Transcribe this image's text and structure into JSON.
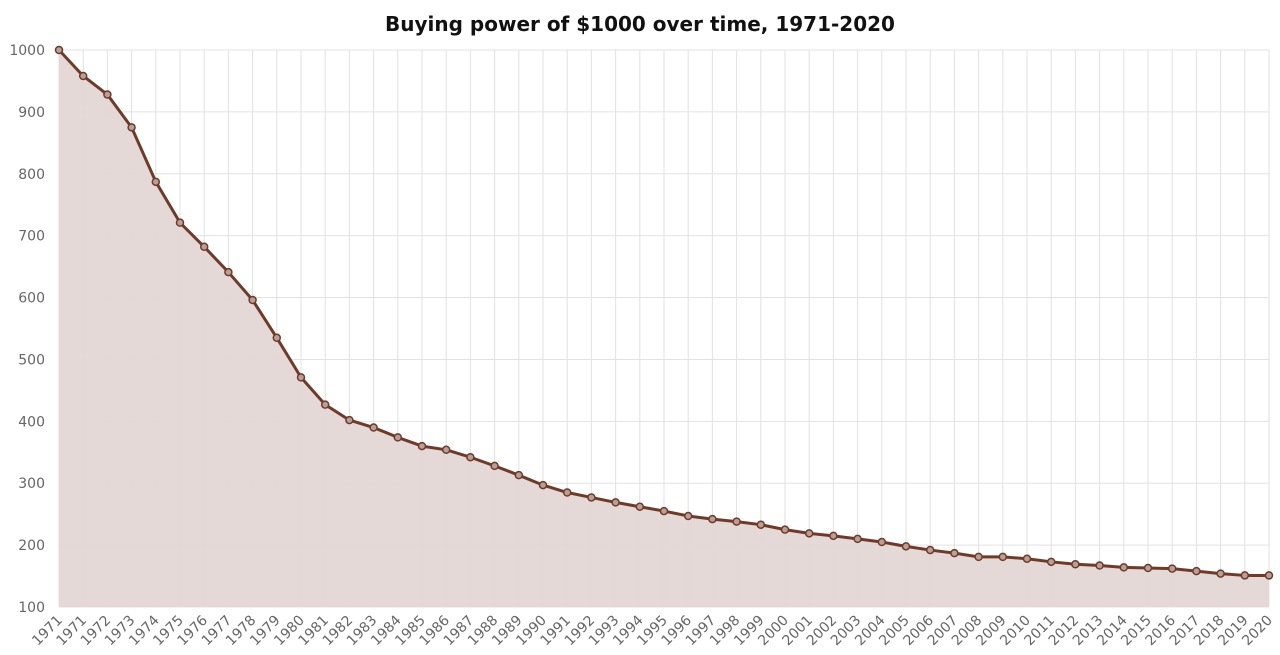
{
  "chart_data": {
    "type": "area",
    "title": "Buying power of $1000 over time, 1971-2020",
    "xlabel": "",
    "ylabel": "",
    "ylim": [
      100,
      1000
    ],
    "yticks": [
      100,
      200,
      300,
      400,
      500,
      600,
      700,
      800,
      900,
      1000
    ],
    "grid": true,
    "categories": [
      "1971",
      "1971",
      "1972",
      "1973",
      "1974",
      "1975",
      "1976",
      "1977",
      "1978",
      "1979",
      "1980",
      "1981",
      "1982",
      "1983",
      "1984",
      "1985",
      "1986",
      "1987",
      "1988",
      "1989",
      "1990",
      "1991",
      "1992",
      "1993",
      "1994",
      "1995",
      "1996",
      "1997",
      "1998",
      "1999",
      "2000",
      "2001",
      "2002",
      "2003",
      "2004",
      "2005",
      "2006",
      "2007",
      "2008",
      "2009",
      "2010",
      "2011",
      "2012",
      "2013",
      "2014",
      "2015",
      "2016",
      "2017",
      "2018",
      "2019",
      "2020"
    ],
    "values": [
      1000,
      958,
      928,
      875,
      787,
      721,
      682,
      641,
      596,
      535,
      471,
      427,
      402,
      390,
      374,
      360,
      354,
      342,
      328,
      313,
      297,
      285,
      277,
      269,
      262,
      255,
      247,
      242,
      238,
      233,
      225,
      219,
      215,
      210,
      205,
      198,
      192,
      187,
      181,
      181,
      178,
      173,
      169,
      167,
      164,
      163,
      162,
      158,
      154,
      151,
      151
    ],
    "colors": {
      "line": "#6e3b2a",
      "fill": "#e3d7d4",
      "grid": "#e2e2e2"
    }
  }
}
